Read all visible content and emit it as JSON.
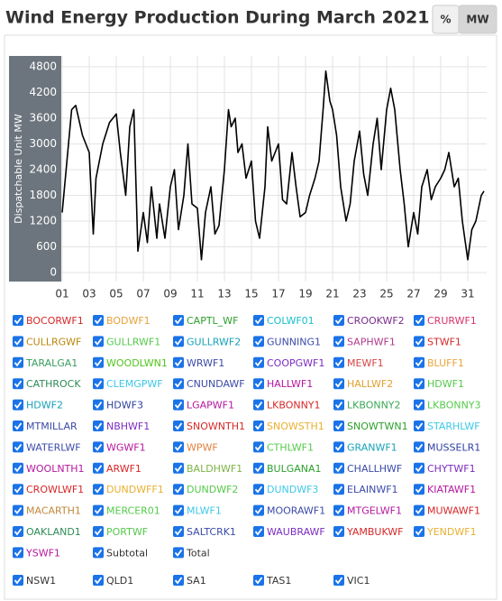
{
  "title": "Wind Energy Production During March 2021",
  "buttons": [
    "%",
    "MW"
  ],
  "chart_data": {
    "type": "line",
    "y_label": "Dispatchable Unit MW",
    "x": [
      1,
      1.7,
      2,
      2.5,
      3,
      3.3,
      3.5,
      4,
      4.5,
      5,
      5.3,
      5.7,
      6,
      6.3,
      6.6,
      7,
      7.3,
      7.6,
      8,
      8.2,
      8.6,
      9,
      9.3,
      9.6,
      10,
      10.3,
      10.6,
      11,
      11.3,
      11.6,
      12,
      12.3,
      12.6,
      13,
      13.3,
      13.5,
      13.8,
      14,
      14.3,
      14.6,
      15,
      15.3,
      15.6,
      16,
      16.2,
      16.5,
      17,
      17.3,
      17.6,
      18,
      18.3,
      18.6,
      19,
      19.3,
      19.7,
      20,
      20.3,
      20.5,
      20.8,
      21,
      21.3,
      21.6,
      22,
      22.3,
      22.6,
      23,
      23.3,
      23.6,
      24,
      24.3,
      24.6,
      25,
      25.3,
      25.6,
      26,
      26.3,
      26.6,
      27,
      27.3,
      27.6,
      28,
      28.3,
      28.6,
      29,
      29.3,
      29.6,
      30,
      30.3,
      30.6,
      31,
      31.3,
      31.6,
      32,
      32.2
    ],
    "series": [
      {
        "name": "Total",
        "color": "#000000",
        "values": [
          1400,
          3800,
          3900,
          3200,
          2800,
          900,
          2200,
          3000,
          3500,
          3700,
          2800,
          1800,
          3400,
          3800,
          500,
          1400,
          700,
          2000,
          800,
          1600,
          800,
          2000,
          2400,
          1000,
          1800,
          3000,
          1600,
          1500,
          300,
          1400,
          2000,
          900,
          1100,
          2400,
          3800,
          3400,
          3600,
          2800,
          3000,
          2200,
          2600,
          1200,
          800,
          2000,
          3400,
          2600,
          3000,
          1700,
          1600,
          2800,
          2000,
          1300,
          1400,
          1800,
          2200,
          2600,
          3800,
          4700,
          4000,
          3800,
          3200,
          2000,
          1200,
          1600,
          2600,
          3300,
          2300,
          1800,
          3000,
          3600,
          2400,
          3800,
          4300,
          3800,
          2400,
          1600,
          600,
          1400,
          900,
          2000,
          2400,
          1700,
          2000,
          2200,
          2400,
          2800,
          2000,
          2200,
          1200,
          300,
          1000,
          1200,
          1800,
          1900
        ]
      }
    ],
    "xlim": [
      0.93,
      32.2
    ],
    "xticks": [
      {
        "value": 1,
        "label": "01"
      },
      {
        "value": 3,
        "label": "03"
      },
      {
        "value": 5,
        "label": "05"
      },
      {
        "value": 7,
        "label": "07"
      },
      {
        "value": 9,
        "label": "09"
      },
      {
        "value": 11,
        "label": "11"
      },
      {
        "value": 13,
        "label": "13"
      },
      {
        "value": 15,
        "label": "15"
      },
      {
        "value": 17,
        "label": "17"
      },
      {
        "value": 19,
        "label": "19"
      },
      {
        "value": 21,
        "label": "21"
      },
      {
        "value": 23,
        "label": "23"
      },
      {
        "value": 25,
        "label": "25"
      },
      {
        "value": 27,
        "label": "27"
      },
      {
        "value": 29,
        "label": "29"
      },
      {
        "value": 31,
        "label": "31"
      }
    ],
    "ylim": [
      0,
      4800
    ],
    "yticks": [
      0,
      600,
      1200,
      1800,
      2400,
      3000,
      3600,
      4200,
      4800
    ],
    "grid": true,
    "legend": [
      {
        "name": "BOCORWF1",
        "color": "#d62728"
      },
      {
        "name": "BODWF1",
        "color": "#e6a23c"
      },
      {
        "name": "CAPTL_WF",
        "color": "#2ca02c"
      },
      {
        "name": "COLWF01",
        "color": "#17becf"
      },
      {
        "name": "CROOKWF2",
        "color": "#7b2c8c"
      },
      {
        "name": "CRURWF1",
        "color": "#d6336c"
      },
      {
        "name": "CULLRGWF",
        "color": "#b8860b"
      },
      {
        "name": "GULLRWF1",
        "color": "#55c94a"
      },
      {
        "name": "GULLRWF2",
        "color": "#17a2b8"
      },
      {
        "name": "GUNNING1",
        "color": "#3b4aa8"
      },
      {
        "name": "SAPHWF1",
        "color": "#b03a8a"
      },
      {
        "name": "STWF1",
        "color": "#d62728"
      },
      {
        "name": "TARALGA1",
        "color": "#3a9e5f"
      },
      {
        "name": "WOODLWN1",
        "color": "#52c41a"
      },
      {
        "name": "WRWF1",
        "color": "#3b4aa8"
      },
      {
        "name": "COOPGWF1",
        "color": "#7b2cbf"
      },
      {
        "name": "MEWF1",
        "color": "#d64545"
      },
      {
        "name": "BLUFF1",
        "color": "#e8a53c"
      },
      {
        "name": "CATHROCK",
        "color": "#2e8b57"
      },
      {
        "name": "CLEMGPWF",
        "color": "#3ec8e6"
      },
      {
        "name": "CNUNDAWF",
        "color": "#3b4aa8"
      },
      {
        "name": "HALLWF1",
        "color": "#b5179e"
      },
      {
        "name": "HALLWF2",
        "color": "#e0a030"
      },
      {
        "name": "HDWF1",
        "color": "#55c94a"
      },
      {
        "name": "HDWF2",
        "color": "#17a2b8"
      },
      {
        "name": "HDWF3",
        "color": "#2e3fa0"
      },
      {
        "name": "LGAPWF1",
        "color": "#b5179e"
      },
      {
        "name": "LKBONNY1",
        "color": "#d62728"
      },
      {
        "name": "LKBONNY2",
        "color": "#3aa655"
      },
      {
        "name": "LKBONNY3",
        "color": "#55c94a"
      },
      {
        "name": "MTMILLAR",
        "color": "#3b4aa8"
      },
      {
        "name": "NBHWF1",
        "color": "#7b2cbf"
      },
      {
        "name": "SNOWNTH1",
        "color": "#d62728"
      },
      {
        "name": "SNOWSTH1",
        "color": "#e8b030"
      },
      {
        "name": "SNOWTWN1",
        "color": "#2ca02c"
      },
      {
        "name": "STARHLWF",
        "color": "#3ec8e6"
      },
      {
        "name": "WATERLWF",
        "color": "#3b4aa8"
      },
      {
        "name": "WGWF1",
        "color": "#b5179e"
      },
      {
        "name": "WPWF",
        "color": "#e08040"
      },
      {
        "name": "CTHLWF1",
        "color": "#55c94a"
      },
      {
        "name": "GRANWF1",
        "color": "#17a2b8"
      },
      {
        "name": "MUSSELR1",
        "color": "#2e3fa0"
      },
      {
        "name": "WOOLNTH1",
        "color": "#b5179e"
      },
      {
        "name": "ARWF1",
        "color": "#d62728"
      },
      {
        "name": "BALDHWF1",
        "color": "#7cb342"
      },
      {
        "name": "BULGANA1",
        "color": "#2ca02c"
      },
      {
        "name": "CHALLHWF",
        "color": "#3b4aa8"
      },
      {
        "name": "CHYTWF1",
        "color": "#7b2cbf"
      },
      {
        "name": "CROWLWF1",
        "color": "#d62728"
      },
      {
        "name": "DUNDWFF1",
        "color": "#e8b030"
      },
      {
        "name": "DUNDWF2",
        "color": "#55c94a"
      },
      {
        "name": "DUNDWF3",
        "color": "#3ec8e6"
      },
      {
        "name": "ELAINWF1",
        "color": "#3b4aa8"
      },
      {
        "name": "KIATAWF1",
        "color": "#b5179e"
      },
      {
        "name": "MACARTH1",
        "color": "#c0883a"
      },
      {
        "name": "MERCER01",
        "color": "#55c94a"
      },
      {
        "name": "MLWF1",
        "color": "#3ec8e6"
      },
      {
        "name": "MOORAWF1",
        "color": "#3b4aa8"
      },
      {
        "name": "MTGELWF1",
        "color": "#b5179e"
      },
      {
        "name": "MUWAWF1",
        "color": "#d62728"
      },
      {
        "name": "OAKLAND1",
        "color": "#2e8b57"
      },
      {
        "name": "PORTWF",
        "color": "#55c94a"
      },
      {
        "name": "SALTCRK1",
        "color": "#3b4aa8"
      },
      {
        "name": "WAUBRAWF",
        "color": "#7b2cbf"
      },
      {
        "name": "YAMBUKWF",
        "color": "#d62728"
      },
      {
        "name": "YENDWF1",
        "color": "#e8b030"
      },
      {
        "name": "YSWF1",
        "color": "#b5179e"
      },
      {
        "name": "Subtotal",
        "color": "#333333"
      }
    ],
    "regions": [
      "NSW1",
      "QLD1",
      "SA1",
      "TAS1",
      "VIC1"
    ]
  }
}
